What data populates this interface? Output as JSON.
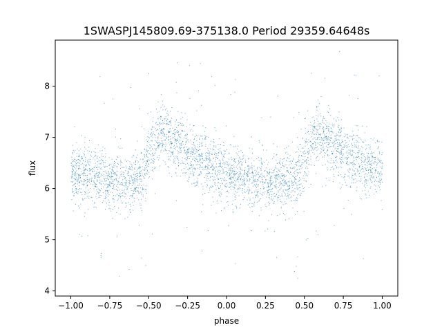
{
  "chart_data": {
    "type": "scatter",
    "title": "1SWASPJ145809.69-375138.0 Period 29359.64648s",
    "xlabel": "phase",
    "ylabel": "flux",
    "xlim": [
      -1.1,
      1.1
    ],
    "ylim": [
      3.9,
      8.9
    ],
    "xticks": [
      -1.0,
      -0.75,
      -0.5,
      -0.25,
      0.0,
      0.25,
      0.5,
      0.75,
      1.0
    ],
    "xtick_labels": [
      "−1.00",
      "−0.75",
      "−0.50",
      "−0.25",
      "0.00",
      "0.25",
      "0.50",
      "0.75",
      "1.00"
    ],
    "yticks": [
      4,
      5,
      6,
      7,
      8
    ],
    "ytick_labels": [
      "4",
      "5",
      "6",
      "7",
      "8"
    ],
    "grid": false,
    "marker_color": "#1f77b4",
    "series": [
      {
        "description_of_trend": "phase-folded light curve; dense band of small points",
        "x": [
          -1.0,
          -0.9,
          -0.8,
          -0.7,
          -0.6,
          -0.55,
          -0.5,
          -0.45,
          -0.4,
          -0.35,
          -0.3,
          -0.25,
          -0.2,
          -0.1,
          0.0,
          0.1,
          0.2,
          0.3,
          0.4,
          0.45,
          0.5,
          0.55,
          0.6,
          0.65,
          0.7,
          0.75,
          0.8,
          0.9,
          1.0
        ],
        "y": [
          6.3,
          6.25,
          6.2,
          6.15,
          6.15,
          6.2,
          6.6,
          7.0,
          7.05,
          6.95,
          6.85,
          6.7,
          6.6,
          6.45,
          6.3,
          6.2,
          6.15,
          6.15,
          6.15,
          6.2,
          6.6,
          7.0,
          7.05,
          6.95,
          6.85,
          6.7,
          6.6,
          6.45,
          6.35
        ],
        "spread": [
          0.28,
          0.28,
          0.28,
          0.28,
          0.28,
          0.3,
          0.35,
          0.3,
          0.3,
          0.3,
          0.3,
          0.28,
          0.28,
          0.28,
          0.28,
          0.28,
          0.28,
          0.28,
          0.28,
          0.3,
          0.35,
          0.3,
          0.3,
          0.3,
          0.3,
          0.28,
          0.28,
          0.28,
          0.28
        ]
      }
    ]
  }
}
